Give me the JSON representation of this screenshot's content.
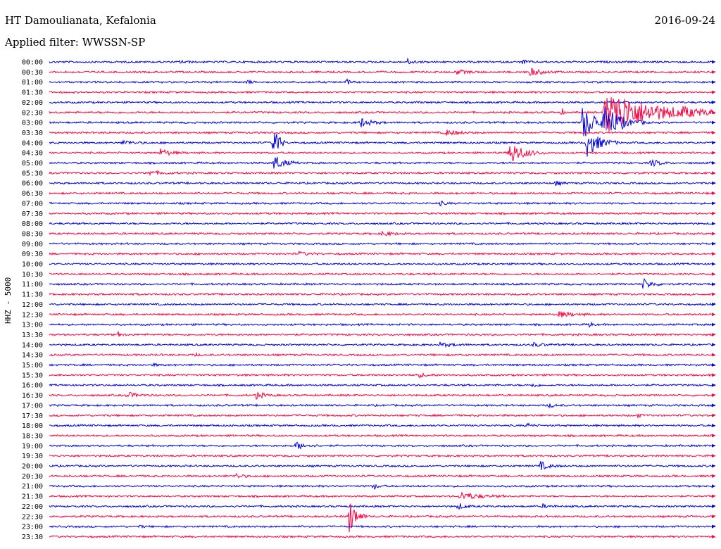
{
  "header": {
    "title": "HT Damoulianata, Kefalonia",
    "filter": "Applied filter: WWSSN-SP",
    "date": "2016-09-24"
  },
  "chart_data": {
    "type": "line",
    "title": "HT Damoulianata, Kefalonia",
    "subtitle": "Applied filter: WWSSN-SP",
    "date": "2016-09-24",
    "ylabel": "HHZ - 5000",
    "tick_labels": [
      "00:00",
      "00:30",
      "01:00",
      "01:30",
      "02:00",
      "02:30",
      "03:00",
      "03:30",
      "04:00",
      "04:30",
      "05:00",
      "05:30",
      "06:00",
      "06:30",
      "07:00",
      "07:30",
      "08:00",
      "08:30",
      "09:00",
      "09:30",
      "10:00",
      "10:30",
      "11:00",
      "11:30",
      "12:00",
      "12:30",
      "13:00",
      "13:30",
      "14:00",
      "14:30",
      "15:00",
      "15:30",
      "16:00",
      "16:30",
      "17:00",
      "17:30",
      "18:00",
      "18:30",
      "19:00",
      "19:30",
      "20:00",
      "20:30",
      "21:00",
      "21:30",
      "22:00",
      "22:30",
      "23:00",
      "23:30"
    ],
    "x_range_minutes": [
      0,
      30
    ],
    "series_colors": [
      "#0000e0",
      "#ff0040"
    ],
    "grid": false,
    "legend": "none",
    "events": [
      {
        "row": 0,
        "minute": 5.9,
        "amp": 0.4,
        "len": 0.6
      },
      {
        "row": 0,
        "minute": 16.1,
        "amp": 0.6,
        "len": 0.8
      },
      {
        "row": 0,
        "minute": 21.3,
        "amp": 0.5,
        "len": 0.6
      },
      {
        "row": 1,
        "minute": 18.3,
        "amp": 0.5,
        "len": 1.5
      },
      {
        "row": 1,
        "minute": 21.6,
        "amp": 0.8,
        "len": 1.5
      },
      {
        "row": 2,
        "minute": 8.9,
        "amp": 0.5,
        "len": 0.4
      },
      {
        "row": 2,
        "minute": 13.4,
        "amp": 0.6,
        "len": 0.4
      },
      {
        "row": 4,
        "minute": 16.5,
        "amp": 0.2,
        "len": 0.4
      },
      {
        "row": 5,
        "minute": 23.1,
        "amp": 0.8,
        "len": 0.2
      },
      {
        "row": 5,
        "minute": 25.0,
        "amp": 4.5,
        "len": 6.0
      },
      {
        "row": 5,
        "minute": 28.5,
        "amp": 0.5,
        "len": 1.2
      },
      {
        "row": 6,
        "minute": 14.0,
        "amp": 1.0,
        "len": 1.2
      },
      {
        "row": 6,
        "minute": 24.0,
        "amp": 3.5,
        "len": 2.0
      },
      {
        "row": 6,
        "minute": 25.0,
        "amp": 3.0,
        "len": 2.0
      },
      {
        "row": 7,
        "minute": 17.8,
        "amp": 0.6,
        "len": 1.5
      },
      {
        "row": 8,
        "minute": 3.3,
        "amp": 0.5,
        "len": 1.2
      },
      {
        "row": 8,
        "minute": 10.1,
        "amp": 4.5,
        "len": 0.6
      },
      {
        "row": 8,
        "minute": 24.2,
        "amp": 3.0,
        "len": 1.5
      },
      {
        "row": 9,
        "minute": 5.0,
        "amp": 0.8,
        "len": 1.2
      },
      {
        "row": 9,
        "minute": 20.7,
        "amp": 2.6,
        "len": 1.6
      },
      {
        "row": 10,
        "minute": 10.1,
        "amp": 1.6,
        "len": 1.2
      },
      {
        "row": 10,
        "minute": 27.1,
        "amp": 0.8,
        "len": 1.0
      },
      {
        "row": 11,
        "minute": 4.4,
        "amp": 0.5,
        "len": 1.5
      },
      {
        "row": 12,
        "minute": 22.8,
        "amp": 0.5,
        "len": 0.6
      },
      {
        "row": 14,
        "minute": 17.6,
        "amp": 0.4,
        "len": 0.6
      },
      {
        "row": 17,
        "minute": 15.0,
        "amp": 0.5,
        "len": 1.2
      },
      {
        "row": 19,
        "minute": 11.2,
        "amp": 0.4,
        "len": 1.2
      },
      {
        "row": 22,
        "minute": 26.7,
        "amp": 1.2,
        "len": 1.0
      },
      {
        "row": 25,
        "minute": 22.9,
        "amp": 0.6,
        "len": 1.8
      },
      {
        "row": 26,
        "minute": 24.3,
        "amp": 0.6,
        "len": 0.4
      },
      {
        "row": 27,
        "minute": 3.1,
        "amp": 0.5,
        "len": 0.4
      },
      {
        "row": 28,
        "minute": 17.6,
        "amp": 0.4,
        "len": 1.5
      },
      {
        "row": 28,
        "minute": 21.8,
        "amp": 0.4,
        "len": 1.2
      },
      {
        "row": 29,
        "minute": 6.6,
        "amp": 0.4,
        "len": 0.3
      },
      {
        "row": 30,
        "minute": 4.7,
        "amp": 0.3,
        "len": 0.4
      },
      {
        "row": 31,
        "minute": 16.5,
        "amp": 0.5,
        "len": 1.2
      },
      {
        "row": 32,
        "minute": 21.7,
        "amp": 0.5,
        "len": 0.6
      },
      {
        "row": 33,
        "minute": 3.5,
        "amp": 0.6,
        "len": 1.2
      },
      {
        "row": 33,
        "minute": 9.3,
        "amp": 0.7,
        "len": 1.0
      },
      {
        "row": 34,
        "minute": 22.5,
        "amp": 0.4,
        "len": 0.8
      },
      {
        "row": 35,
        "minute": 26.5,
        "amp": 0.5,
        "len": 0.3
      },
      {
        "row": 36,
        "minute": 21.5,
        "amp": 0.5,
        "len": 0.6
      },
      {
        "row": 38,
        "minute": 11.1,
        "amp": 0.8,
        "len": 1.2
      },
      {
        "row": 40,
        "minute": 22.1,
        "amp": 0.9,
        "len": 1.0
      },
      {
        "row": 41,
        "minute": 8.4,
        "amp": 0.5,
        "len": 0.8
      },
      {
        "row": 42,
        "minute": 14.6,
        "amp": 0.6,
        "len": 0.6
      },
      {
        "row": 43,
        "minute": 18.5,
        "amp": 0.9,
        "len": 2.0
      },
      {
        "row": 44,
        "minute": 18.4,
        "amp": 0.7,
        "len": 0.8
      },
      {
        "row": 44,
        "minute": 22.2,
        "amp": 0.4,
        "len": 0.8
      },
      {
        "row": 45,
        "minute": 13.5,
        "amp": 4.0,
        "len": 0.8
      },
      {
        "row": 46,
        "minute": 4.1,
        "amp": 0.3,
        "len": 0.4
      }
    ]
  }
}
